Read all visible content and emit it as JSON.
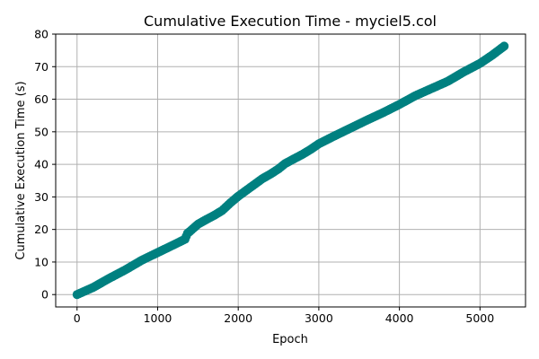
{
  "chart_data": {
    "type": "scatter",
    "title": "Cumulative Execution Time - myciel5.col",
    "xlabel": "Epoch",
    "ylabel": "Cumulative Execution Time (s)",
    "xlim": [
      -265,
      5565
    ],
    "ylim": [
      -3.8,
      80
    ],
    "xticks": [
      0,
      1000,
      2000,
      3000,
      4000,
      5000
    ],
    "yticks": [
      0,
      10,
      20,
      30,
      40,
      50,
      60,
      70,
      80
    ],
    "grid": true,
    "marker_color": "#008080",
    "series": [
      {
        "name": "",
        "points": [
          [
            0,
            0
          ],
          [
            200,
            2.2
          ],
          [
            400,
            5.0
          ],
          [
            600,
            7.6
          ],
          [
            800,
            10.5
          ],
          [
            1000,
            12.9
          ],
          [
            1200,
            15.3
          ],
          [
            1340,
            17.0
          ],
          [
            1370,
            18.8
          ],
          [
            1400,
            19.4
          ],
          [
            1500,
            21.6
          ],
          [
            1600,
            23.0
          ],
          [
            1700,
            24.3
          ],
          [
            1800,
            25.8
          ],
          [
            1900,
            28.1
          ],
          [
            2000,
            30.2
          ],
          [
            2100,
            32.0
          ],
          [
            2200,
            33.8
          ],
          [
            2300,
            35.6
          ],
          [
            2400,
            37.0
          ],
          [
            2500,
            38.6
          ],
          [
            2580,
            40.2
          ],
          [
            2700,
            41.8
          ],
          [
            2800,
            43.1
          ],
          [
            2900,
            44.6
          ],
          [
            3000,
            46.3
          ],
          [
            3200,
            48.8
          ],
          [
            3400,
            51.2
          ],
          [
            3600,
            53.6
          ],
          [
            3800,
            55.9
          ],
          [
            4000,
            58.4
          ],
          [
            4200,
            61.1
          ],
          [
            4400,
            63.3
          ],
          [
            4600,
            65.5
          ],
          [
            4800,
            68.4
          ],
          [
            5000,
            71.0
          ],
          [
            5150,
            73.5
          ],
          [
            5300,
            76.3
          ]
        ]
      }
    ]
  }
}
